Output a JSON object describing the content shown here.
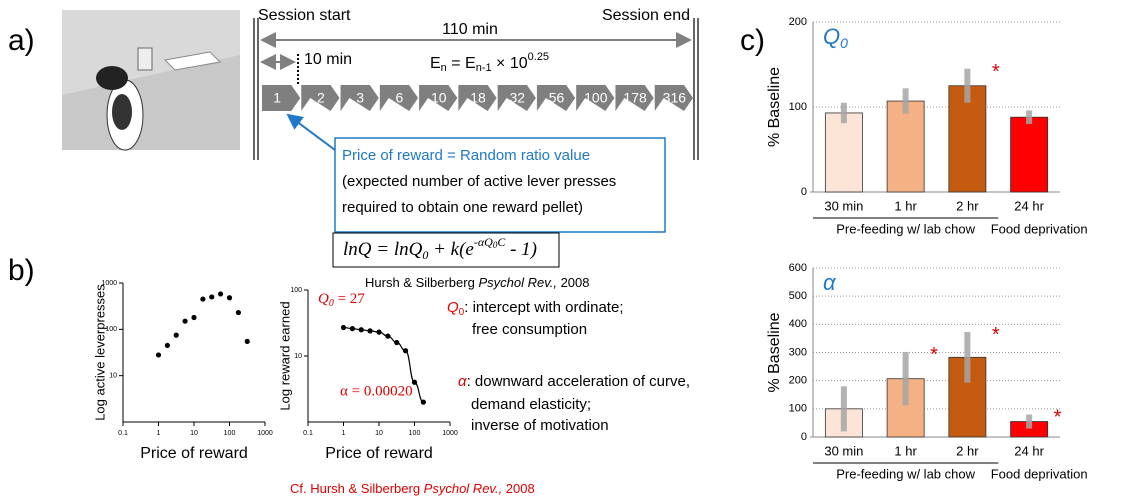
{
  "panel_a": {
    "label": "a)",
    "session_start": "Session start",
    "session_end": "Session end",
    "duration": "110 min",
    "step": "10 min",
    "formula": [
      "E",
      "n",
      " = E",
      "n-1",
      " × 10",
      "0.25"
    ],
    "ratios": [
      1,
      2,
      3,
      6,
      10,
      18,
      32,
      56,
      100,
      178,
      316
    ],
    "box": [
      "Price of reward = Random ratio value",
      "(expected number of active lever presses",
      "required to obtain one reward pellet)"
    ]
  },
  "panel_b": {
    "label": "b)",
    "equation": [
      "lnQ = lnQ",
      "0",
      " + k(e",
      "-αQ",
      "0",
      "C",
      " - 1)"
    ],
    "citation": [
      "Hursh & Silberberg ",
      "Psychol Rev.,",
      "  2008"
    ],
    "q0_label": [
      "Q",
      "0",
      " = 27"
    ],
    "alpha_label": "α = 0.00020",
    "q0_note": [
      "Q",
      "0",
      ": intercept with ordinate;",
      "free consumption"
    ],
    "alpha_note": [
      "α",
      ": downward acceleration of curve,",
      "demand elasticity;",
      "inverse of motivation"
    ],
    "cf": [
      "Cf. Hursh & Silberberg ",
      "Psychol Rev.,",
      "  2008"
    ]
  },
  "panel_c": {
    "label": "c)"
  },
  "chart_data": [
    {
      "type": "scatter",
      "x_label": "Price of reward",
      "y_label": "Log active leverpresses",
      "color": "#000000",
      "x": [
        1,
        1.78,
        3.16,
        5.6,
        10,
        17.8,
        31.6,
        56,
        100,
        178,
        316
      ],
      "values": [
        28,
        45,
        75,
        150,
        180,
        450,
        500,
        580,
        480,
        230,
        55
      ],
      "xlog": true,
      "ylog": true,
      "xlim": [
        0.1,
        1000
      ],
      "ylim": [
        1,
        1000
      ],
      "xticks": [
        0.1,
        1,
        10,
        100,
        1000
      ],
      "yticks": [
        10,
        100,
        1000
      ]
    },
    {
      "type": "scatter",
      "x_label": "Price of reward",
      "y_label": "Log reward earned",
      "color": "#000000",
      "x": [
        1,
        1.78,
        3.16,
        5.6,
        10,
        17.8,
        31.6,
        56,
        100,
        178
      ],
      "values": [
        27,
        26,
        25,
        24,
        23,
        20,
        16,
        12,
        4,
        2
      ],
      "fit_curve": true,
      "xlog": true,
      "ylog": true,
      "xlim": [
        0.1,
        1000
      ],
      "ylim": [
        1,
        100
      ],
      "xticks": [
        0.1,
        1,
        10,
        100,
        1000
      ],
      "yticks": [
        10,
        100
      ]
    },
    {
      "type": "bar",
      "title": [
        "Q",
        "0"
      ],
      "y_label": "% Baseline",
      "categories": [
        "30 min",
        "1 hr",
        "2 hr",
        "24 hr"
      ],
      "groups": [
        "Pre-feeding w/ lab chow",
        "Food deprivation"
      ],
      "values": [
        93,
        107,
        125,
        88
      ],
      "errors": [
        12,
        15,
        20,
        8
      ],
      "significance": [
        null,
        null,
        "*",
        null
      ],
      "colors": [
        "#fce4d6",
        "#f4b183",
        "#c55a11",
        "#ff0000"
      ],
      "ylim": [
        0,
        200
      ],
      "yticks": [
        0,
        100,
        200
      ],
      "grid": true
    },
    {
      "type": "bar",
      "title": [
        "α"
      ],
      "y_label": "% Baseline",
      "categories": [
        "30 min",
        "1 hr",
        "2 hr",
        "24 hr"
      ],
      "groups": [
        "Pre-feeding w/ lab chow",
        "Food deprivation"
      ],
      "values": [
        100,
        207,
        283,
        55
      ],
      "errors": [
        80,
        95,
        90,
        25
      ],
      "significance": [
        null,
        "*",
        "*",
        "*"
      ],
      "colors": [
        "#fce4d6",
        "#f4b183",
        "#c55a11",
        "#ff0000"
      ],
      "ylim": [
        0,
        600
      ],
      "yticks": [
        0,
        100,
        200,
        300,
        400,
        500,
        600
      ],
      "grid": true
    }
  ]
}
